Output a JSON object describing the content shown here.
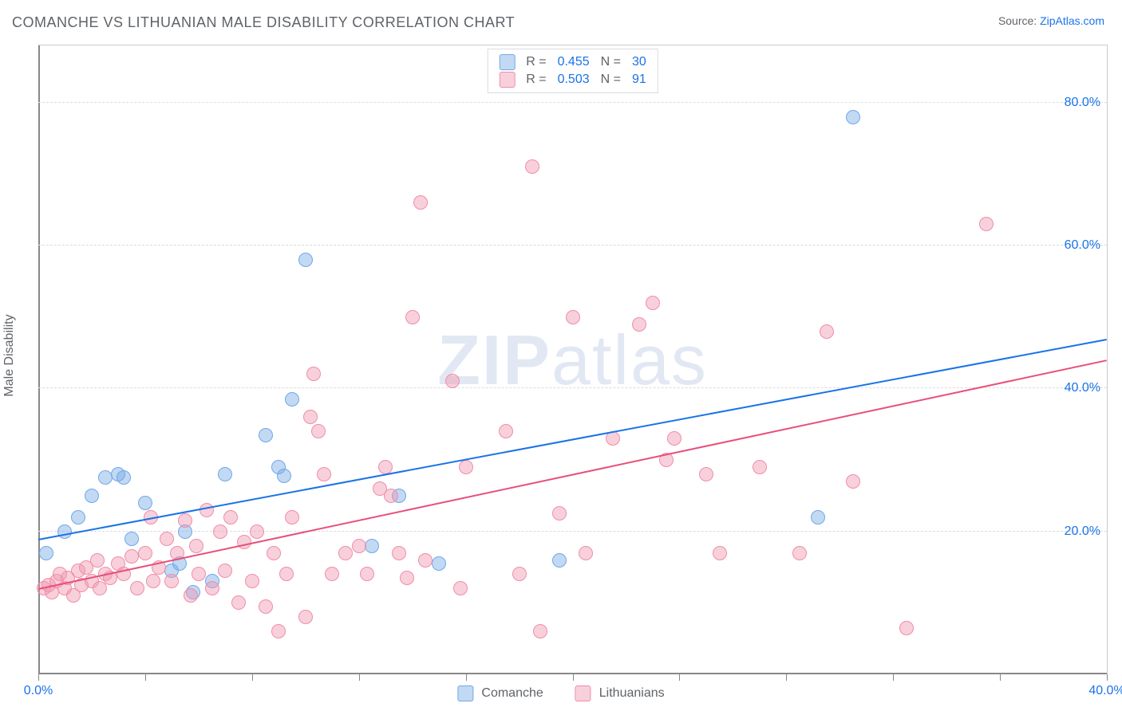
{
  "header": {
    "title": "COMANCHE VS LITHUANIAN MALE DISABILITY CORRELATION CHART",
    "source_prefix": "Source: ",
    "source_link": "ZipAtlas.com"
  },
  "watermark": {
    "bold": "ZIP",
    "rest": "atlas"
  },
  "chart": {
    "xlim": [
      0,
      40
    ],
    "ylim": [
      0,
      88
    ],
    "x_ticks": [
      0,
      4,
      8,
      12,
      16,
      20,
      24,
      28,
      32,
      36,
      40
    ],
    "x_tick_labels": {
      "0": "0.0%",
      "40": "40.0%"
    },
    "y_grid": [
      20,
      40,
      60,
      80
    ],
    "y_tick_labels": {
      "20": "20.0%",
      "40": "40.0%",
      "60": "60.0%",
      "80": "80.0%"
    },
    "y_title": "Male Disability",
    "grid_color": "#dadce0",
    "axis_color": "#888888",
    "background": "#ffffff",
    "marker_radius": 9,
    "marker_opacity": 0.85,
    "series": [
      {
        "name": "Comanche",
        "color_fill": "rgba(120,170,230,0.45)",
        "color_stroke": "#6fa8e8",
        "trend_color": "#1a73e8",
        "R": "0.455",
        "N": "30",
        "trend": {
          "x1": 0,
          "y1": 19,
          "x2": 40,
          "y2": 47
        },
        "points": [
          [
            0.3,
            17
          ],
          [
            1.0,
            20
          ],
          [
            1.5,
            22
          ],
          [
            2.0,
            25
          ],
          [
            2.5,
            27.5
          ],
          [
            3.0,
            28
          ],
          [
            3.2,
            27.5
          ],
          [
            3.5,
            19
          ],
          [
            4.0,
            24
          ],
          [
            5.0,
            14.5
          ],
          [
            5.3,
            15.5
          ],
          [
            5.5,
            20
          ],
          [
            5.8,
            11.5
          ],
          [
            6.5,
            13
          ],
          [
            7.0,
            28
          ],
          [
            8.5,
            33.5
          ],
          [
            9.0,
            29
          ],
          [
            9.2,
            27.8
          ],
          [
            9.5,
            38.5
          ],
          [
            10.0,
            58
          ],
          [
            12.5,
            18
          ],
          [
            13.5,
            25
          ],
          [
            15.0,
            15.5
          ],
          [
            19.5,
            16
          ],
          [
            29.2,
            22
          ],
          [
            30.5,
            78
          ]
        ]
      },
      {
        "name": "Lithuanians",
        "color_fill": "rgba(240,150,175,0.45)",
        "color_stroke": "#f08da8",
        "trend_color": "#e84f7a",
        "R": "0.503",
        "N": "91",
        "trend": {
          "x1": 0,
          "y1": 12,
          "x2": 40,
          "y2": 44
        },
        "points": [
          [
            0.2,
            12
          ],
          [
            0.4,
            12.5
          ],
          [
            0.5,
            11.5
          ],
          [
            0.7,
            13
          ],
          [
            0.8,
            14
          ],
          [
            1.0,
            12
          ],
          [
            1.1,
            13.5
          ],
          [
            1.3,
            11
          ],
          [
            1.5,
            14.5
          ],
          [
            1.6,
            12.5
          ],
          [
            1.8,
            15
          ],
          [
            2.0,
            13
          ],
          [
            2.2,
            16
          ],
          [
            2.3,
            12
          ],
          [
            2.5,
            14
          ],
          [
            2.7,
            13.5
          ],
          [
            3.0,
            15.5
          ],
          [
            3.2,
            14
          ],
          [
            3.5,
            16.5
          ],
          [
            3.7,
            12
          ],
          [
            4.0,
            17
          ],
          [
            4.2,
            22
          ],
          [
            4.3,
            13
          ],
          [
            4.5,
            15
          ],
          [
            4.8,
            19
          ],
          [
            5.0,
            13
          ],
          [
            5.2,
            17
          ],
          [
            5.5,
            21.5
          ],
          [
            5.7,
            11
          ],
          [
            5.9,
            18
          ],
          [
            6.0,
            14
          ],
          [
            6.3,
            23
          ],
          [
            6.5,
            12
          ],
          [
            6.8,
            20
          ],
          [
            7.0,
            14.5
          ],
          [
            7.2,
            22
          ],
          [
            7.5,
            10
          ],
          [
            7.7,
            18.5
          ],
          [
            8.0,
            13
          ],
          [
            8.2,
            20
          ],
          [
            8.5,
            9.5
          ],
          [
            8.8,
            17
          ],
          [
            9.0,
            6
          ],
          [
            9.3,
            14
          ],
          [
            9.5,
            22
          ],
          [
            10.0,
            8
          ],
          [
            10.2,
            36
          ],
          [
            10.3,
            42
          ],
          [
            10.5,
            34
          ],
          [
            10.7,
            28
          ],
          [
            11.0,
            14
          ],
          [
            11.5,
            17
          ],
          [
            12.0,
            18
          ],
          [
            12.3,
            14
          ],
          [
            12.8,
            26
          ],
          [
            13.0,
            29
          ],
          [
            13.2,
            25
          ],
          [
            13.5,
            17
          ],
          [
            13.8,
            13.5
          ],
          [
            14.0,
            50
          ],
          [
            14.3,
            66
          ],
          [
            14.5,
            16
          ],
          [
            15.5,
            41
          ],
          [
            15.8,
            12
          ],
          [
            16.0,
            29
          ],
          [
            17.5,
            34
          ],
          [
            18.0,
            14
          ],
          [
            18.5,
            71
          ],
          [
            18.8,
            6
          ],
          [
            19.5,
            22.5
          ],
          [
            20.0,
            50
          ],
          [
            20.5,
            17
          ],
          [
            21.5,
            33
          ],
          [
            22.5,
            49
          ],
          [
            23.0,
            52
          ],
          [
            23.5,
            30
          ],
          [
            23.8,
            33
          ],
          [
            25.0,
            28
          ],
          [
            25.5,
            17
          ],
          [
            27.0,
            29
          ],
          [
            28.5,
            17
          ],
          [
            29.5,
            48
          ],
          [
            30.5,
            27
          ],
          [
            32.5,
            6.5
          ],
          [
            35.5,
            63
          ]
        ]
      }
    ]
  },
  "legend_bottom": [
    {
      "label": "Comanche",
      "fill": "rgba(120,170,230,0.45)",
      "stroke": "#6fa8e8"
    },
    {
      "label": "Lithuanians",
      "fill": "rgba(240,150,175,0.45)",
      "stroke": "#f08da8"
    }
  ]
}
